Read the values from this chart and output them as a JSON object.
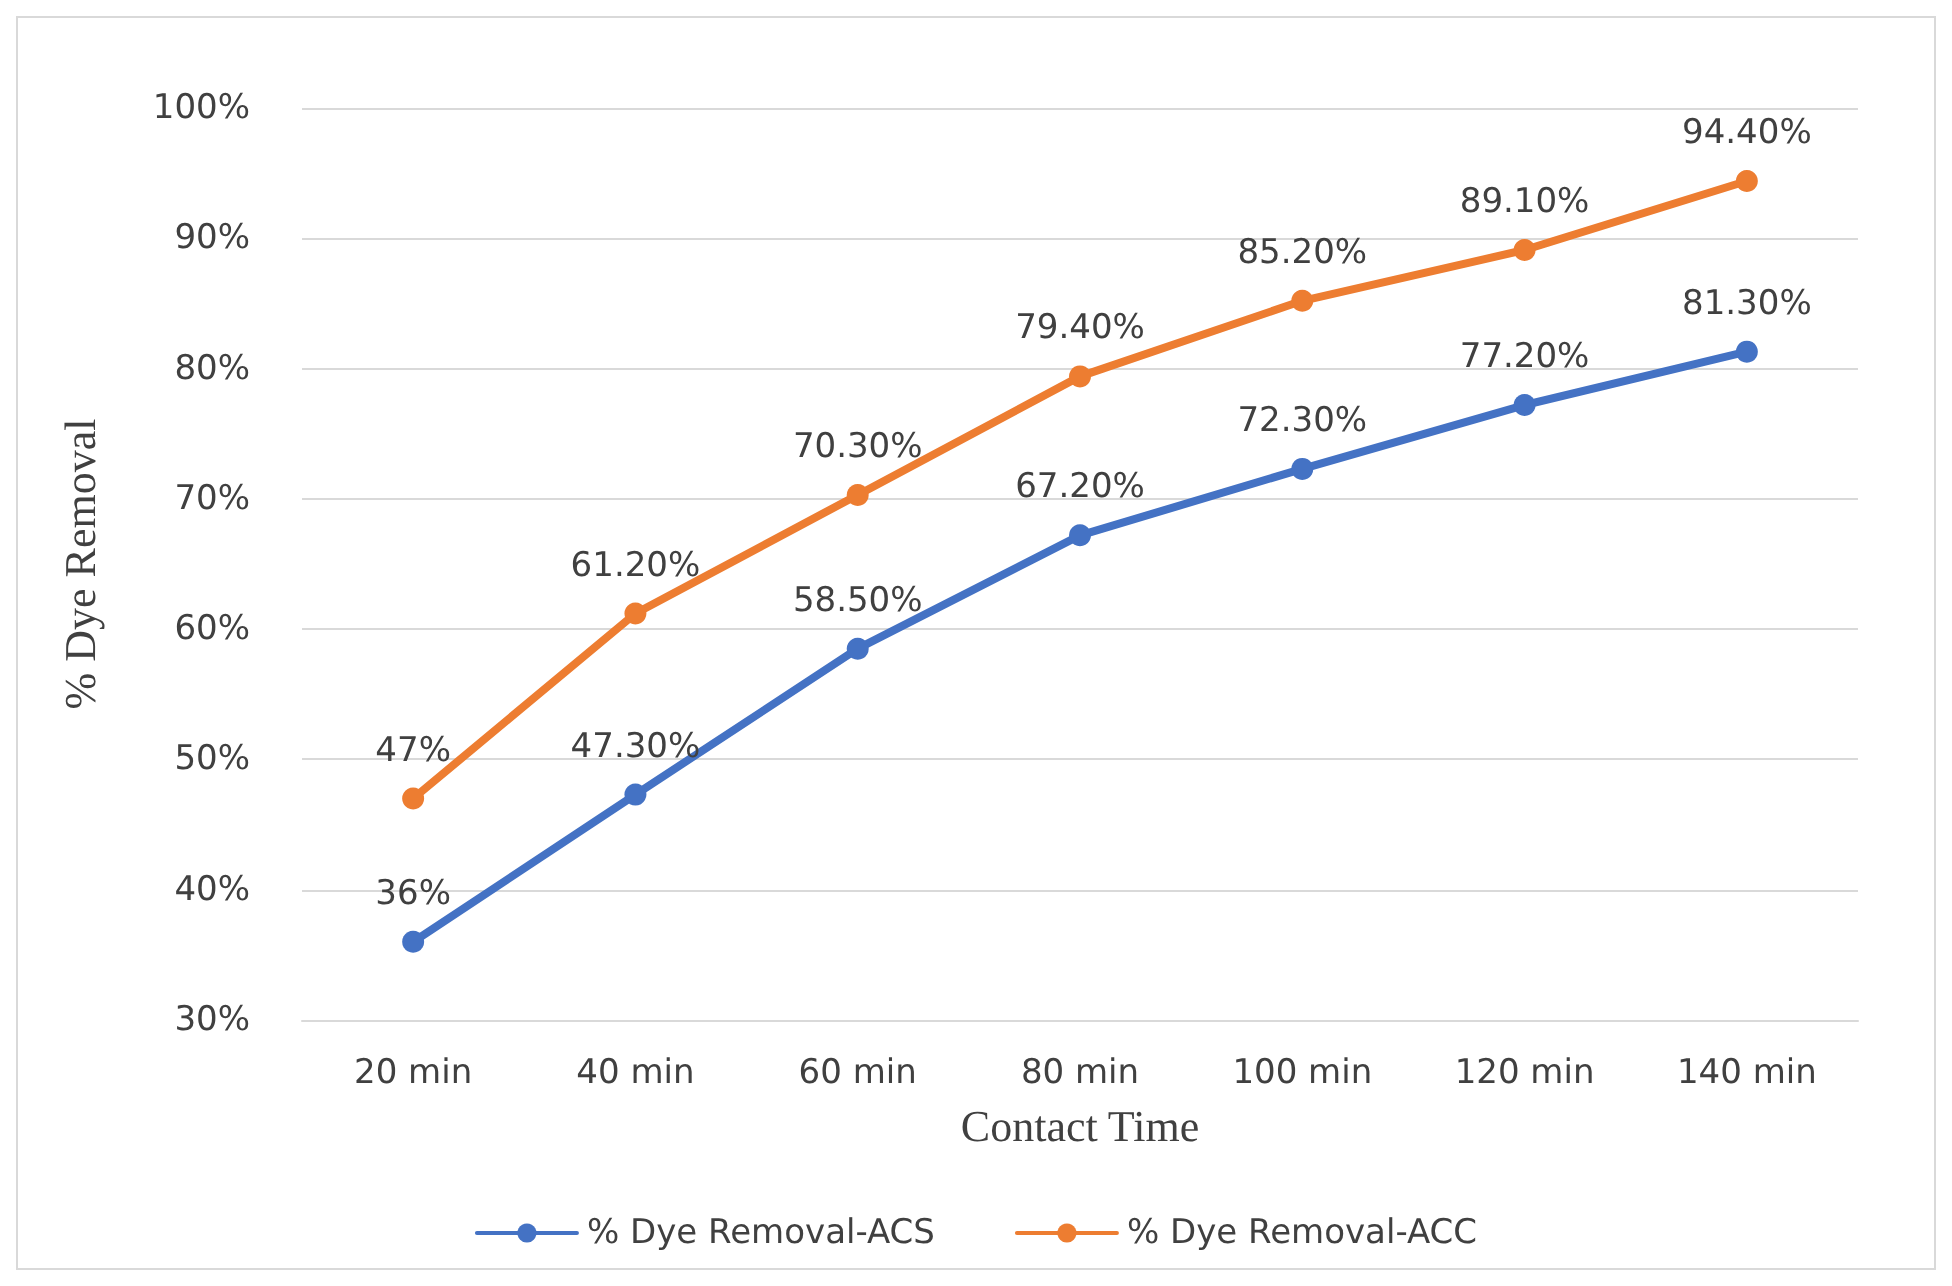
{
  "chart_data": {
    "type": "line",
    "xlabel": "Contact Time",
    "ylabel": "% Dye Removal",
    "categories": [
      "20 min",
      "40 min",
      "60 min",
      "80 min",
      "100 min",
      "120 min",
      "140 min"
    ],
    "series": [
      {
        "name": "% Dye Removal-ACS",
        "color": "#4472c4",
        "values": [
          36,
          47.3,
          58.5,
          67.2,
          72.3,
          77.2,
          81.3
        ],
        "value_labels": [
          "36%",
          "47.30%",
          "58.50%",
          "67.20%",
          "72.30%",
          "77.20%",
          "81.30%"
        ]
      },
      {
        "name": "% Dye Removal-ACC",
        "color": "#ed7d31",
        "values": [
          47,
          61.2,
          70.3,
          79.4,
          85.2,
          89.1,
          94.4
        ],
        "value_labels": [
          "47%",
          "61.20%",
          "70.30%",
          "79.40%",
          "85.20%",
          "89.10%",
          "94.40%"
        ]
      }
    ],
    "ylim": [
      30,
      100
    ],
    "yticks": [
      {
        "value": 30,
        "label": "30%"
      },
      {
        "value": 40,
        "label": "40%"
      },
      {
        "value": 50,
        "label": "50%"
      },
      {
        "value": 60,
        "label": "60%"
      },
      {
        "value": 70,
        "label": "70%"
      },
      {
        "value": 80,
        "label": "80%"
      },
      {
        "value": 90,
        "label": "90%"
      },
      {
        "value": 100,
        "label": "100%"
      }
    ],
    "grid": "y",
    "legend": "bottom",
    "marker": "circle",
    "line_style": "solid"
  }
}
